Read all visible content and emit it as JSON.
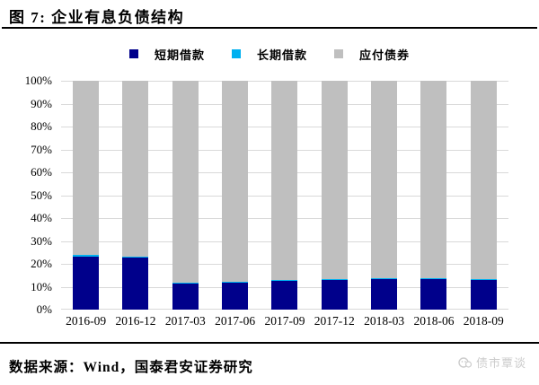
{
  "header": {
    "title": "图 7: 企业有息负债结构"
  },
  "chart_data": {
    "type": "bar",
    "stacked": true,
    "title": "企业有息负债结构",
    "xlabel": "",
    "ylabel": "",
    "ylim": [
      0,
      100
    ],
    "grid": true,
    "legend_position": "top",
    "yticks": [
      "100%",
      "90%",
      "80%",
      "70%",
      "60%",
      "50%",
      "40%",
      "30%",
      "20%",
      "10%",
      "0%"
    ],
    "categories": [
      "2016-09",
      "2016-12",
      "2017-03",
      "2017-06",
      "2017-09",
      "2017-12",
      "2018-03",
      "2018-06",
      "2018-09"
    ],
    "series": [
      {
        "id": "short_term_loans",
        "name": "短期借款",
        "color": "#00008B",
        "values": [
          23.3,
          22.6,
          11.4,
          11.8,
          12.4,
          13.0,
          13.2,
          13.3,
          12.8
        ]
      },
      {
        "id": "long_term_loans",
        "name": "长期借款",
        "color": "#00B0F0",
        "values": [
          0.5,
          0.5,
          0.4,
          0.4,
          0.4,
          0.4,
          0.4,
          0.4,
          0.4
        ]
      },
      {
        "id": "bonds_payable",
        "name": "应付债券",
        "color": "#BFBFBF",
        "values": [
          76.2,
          76.9,
          88.2,
          87.8,
          87.2,
          86.6,
          86.4,
          86.3,
          86.8
        ]
      }
    ],
    "gridline_color": "#d9d9d9"
  },
  "footer": {
    "source": "数据来源：Wind，国泰君安证券研究",
    "watermark": "债市覃谈"
  }
}
